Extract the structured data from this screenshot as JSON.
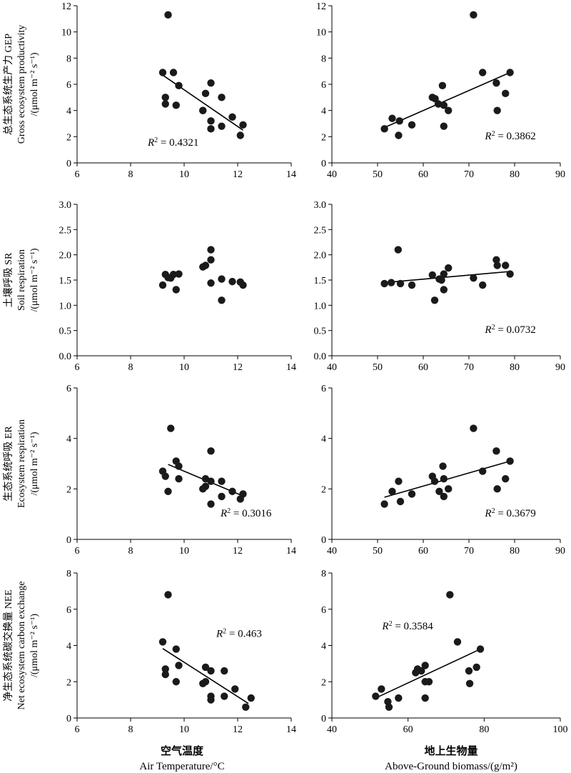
{
  "figure": {
    "row_labels": [
      {
        "cn": "总生态系统生产力 GEP",
        "en": "Gross ecosystem productivity",
        "unit": "/(μmol m⁻² s⁻¹)"
      },
      {
        "cn": "土壤呼吸 SR",
        "en": "Soil respiration",
        "unit": "/(μmol m⁻² s⁻¹)"
      },
      {
        "cn": "生态系统呼吸 ER",
        "en": "Ecosystem respiration",
        "unit": "/(μmol m⁻² s⁻¹)"
      },
      {
        "cn": "净生态系统碳交换量 NEE",
        "en": "Net ecosystem carbon exchange",
        "unit": "/(μmol m⁻² s⁻¹)"
      }
    ],
    "x_labels": [
      {
        "cn": "空气温度",
        "en": "Air Temperature/°C"
      },
      {
        "cn": "地上生物量",
        "en": "Above-Ground biomass/(g/m²)"
      }
    ]
  },
  "chart_data": [
    {
      "type": "scatter",
      "panel": "GEP vs air temperature",
      "xlim": [
        6,
        14
      ],
      "xticks": [
        6,
        8,
        10,
        12,
        14
      ],
      "ylim": [
        0,
        12
      ],
      "yticks": [
        0,
        2,
        4,
        6,
        8,
        10,
        12
      ],
      "x": [
        9.4,
        9.2,
        9.3,
        9.3,
        9.6,
        9.7,
        9.8,
        10.7,
        10.7,
        10.8,
        11.0,
        11.0,
        11.0,
        11.4,
        11.4,
        11.8,
        12.1,
        12.2
      ],
      "y": [
        11.3,
        6.9,
        5.0,
        4.5,
        6.9,
        4.4,
        5.9,
        4.0,
        4.0,
        5.3,
        6.1,
        3.2,
        2.6,
        5.0,
        2.8,
        3.5,
        2.1,
        2.9
      ],
      "fit": {
        "x1": 9.2,
        "y1": 6.7,
        "x2": 12.2,
        "y2": 2.5
      },
      "r2": "= 0.4321",
      "r2_pos": "bottom-center"
    },
    {
      "type": "scatter",
      "panel": "GEP vs above-ground biomass",
      "xlim": [
        40,
        90
      ],
      "xticks": [
        40,
        50,
        60,
        70,
        80,
        90
      ],
      "ylim": [
        0,
        12
      ],
      "yticks": [
        0,
        2,
        4,
        6,
        8,
        10,
        12
      ],
      "x": [
        51.5,
        53.2,
        54.6,
        54.8,
        57.5,
        62.0,
        62.6,
        63.3,
        64.2,
        64.5,
        64.5,
        65.5,
        71.0,
        73.0,
        76.0,
        76.2,
        78.0,
        79.0
      ],
      "y": [
        2.6,
        3.4,
        2.1,
        3.2,
        2.9,
        5.0,
        4.9,
        4.5,
        5.9,
        4.4,
        2.8,
        4.0,
        11.3,
        6.9,
        6.1,
        4.0,
        5.3,
        6.9
      ],
      "fit": {
        "x1": 51.5,
        "y1": 2.7,
        "x2": 79.0,
        "y2": 6.9
      },
      "r2": "= 0.3862",
      "r2_pos": "bottom-right"
    },
    {
      "type": "scatter",
      "panel": "SR vs air temperature",
      "xlim": [
        6,
        14
      ],
      "xticks": [
        6,
        8,
        10,
        12,
        14
      ],
      "ylim": [
        0,
        3.0
      ],
      "yticks": [
        0,
        0.5,
        1.0,
        1.5,
        2.0,
        2.5,
        3.0
      ],
      "x": [
        9.2,
        9.3,
        9.4,
        9.5,
        9.6,
        9.7,
        9.8,
        10.7,
        10.8,
        11.0,
        11.0,
        11.0,
        11.4,
        11.4,
        11.8,
        12.1,
        12.2
      ],
      "y": [
        1.4,
        1.61,
        1.55,
        1.54,
        1.61,
        1.31,
        1.62,
        1.76,
        1.79,
        2.1,
        1.9,
        1.44,
        1.52,
        1.1,
        1.47,
        1.46,
        1.4
      ],
      "r2": "",
      "r2_pos": "none"
    },
    {
      "type": "scatter",
      "panel": "SR vs above-ground biomass",
      "xlim": [
        40,
        90
      ],
      "xticks": [
        40,
        50,
        60,
        70,
        80,
        90
      ],
      "ylim": [
        0,
        3.0
      ],
      "yticks": [
        0,
        0.5,
        1.0,
        1.5,
        2.0,
        2.5,
        3.0
      ],
      "x": [
        51.5,
        53.0,
        54.5,
        55.0,
        57.5,
        62.0,
        62.5,
        63.5,
        64.0,
        64.5,
        64.5,
        65.5,
        71.0,
        73.0,
        76.0,
        76.2,
        78.0,
        79.0
      ],
      "y": [
        1.43,
        1.45,
        2.1,
        1.43,
        1.4,
        1.6,
        1.1,
        1.52,
        1.5,
        1.62,
        1.31,
        1.74,
        1.54,
        1.4,
        1.9,
        1.79,
        1.79,
        1.62
      ],
      "fit": {
        "x1": 51.5,
        "y1": 1.45,
        "x2": 79.0,
        "y2": 1.67
      },
      "r2": "= 0.0732",
      "r2_pos": "bottom-right"
    },
    {
      "type": "scatter",
      "panel": "ER vs air temperature",
      "xlim": [
        6,
        14
      ],
      "xticks": [
        6,
        8,
        10,
        12,
        14
      ],
      "ylim": [
        0,
        6
      ],
      "yticks": [
        0,
        2,
        4,
        6
      ],
      "x": [
        9.2,
        9.3,
        9.4,
        9.5,
        9.7,
        9.8,
        9.8,
        10.7,
        10.8,
        10.8,
        11.0,
        11.0,
        11.0,
        11.4,
        11.4,
        11.8,
        12.1,
        12.2
      ],
      "y": [
        2.7,
        2.5,
        1.9,
        4.4,
        3.1,
        2.4,
        2.9,
        2.0,
        2.4,
        2.1,
        3.5,
        2.3,
        1.4,
        2.3,
        1.7,
        1.9,
        1.6,
        1.8
      ],
      "fit": {
        "x1": 9.4,
        "y1": 2.97,
        "x2": 12.2,
        "y2": 1.72
      },
      "r2": "= 0.3016",
      "r2_pos": "bottom-right"
    },
    {
      "type": "scatter",
      "panel": "ER vs above-ground biomass",
      "xlim": [
        40,
        90
      ],
      "xticks": [
        40,
        50,
        60,
        70,
        80,
        90
      ],
      "ylim": [
        0,
        6
      ],
      "yticks": [
        0,
        2,
        4,
        6
      ],
      "x": [
        51.5,
        53.2,
        54.6,
        55.0,
        57.5,
        62.0,
        62.5,
        63.5,
        64.3,
        64.5,
        64.5,
        65.5,
        71.0,
        73.0,
        76.0,
        76.2,
        78.0,
        79.0
      ],
      "y": [
        1.4,
        1.9,
        2.3,
        1.5,
        1.8,
        2.5,
        2.3,
        1.9,
        2.9,
        2.4,
        1.7,
        2.0,
        4.4,
        2.7,
        3.5,
        2.0,
        2.4,
        3.1
      ],
      "fit": {
        "x1": 51.5,
        "y1": 1.67,
        "x2": 79.0,
        "y2": 3.1
      },
      "r2": "= 0.3679",
      "r2_pos": "bottom-right"
    },
    {
      "type": "scatter",
      "panel": "NEE vs air temperature",
      "xlim": [
        6,
        14
      ],
      "xticks": [
        6,
        8,
        10,
        12,
        14
      ],
      "ylim": [
        0,
        8
      ],
      "yticks": [
        0,
        2,
        4,
        6,
        8
      ],
      "x": [
        9.2,
        9.3,
        9.3,
        9.4,
        9.7,
        9.7,
        9.8,
        10.7,
        10.8,
        10.8,
        11.0,
        11.0,
        11.0,
        11.5,
        11.5,
        11.9,
        12.3,
        12.5
      ],
      "y": [
        4.2,
        2.7,
        2.4,
        6.8,
        3.8,
        2.0,
        2.9,
        1.9,
        2.8,
        2.0,
        2.6,
        1.2,
        1.0,
        2.6,
        1.2,
        1.6,
        0.6,
        1.1
      ],
      "fit": {
        "x1": 9.2,
        "y1": 3.83,
        "x2": 12.4,
        "y2": 0.8
      },
      "r2": "= 0.463",
      "r2_pos": "top-center"
    },
    {
      "type": "scatter",
      "panel": "NEE vs above-ground biomass",
      "xlim": [
        40,
        100
      ],
      "xticks": [
        40,
        60,
        80,
        100
      ],
      "ylim": [
        0,
        8
      ],
      "yticks": [
        0,
        2,
        4,
        6,
        8
      ],
      "x": [
        51.5,
        53.0,
        54.7,
        55.0,
        57.5,
        62.0,
        62.5,
        63.5,
        64.5,
        64.5,
        64.5,
        65.5,
        71.0,
        73.0,
        76.0,
        76.2,
        78.0,
        79.0
      ],
      "y": [
        1.2,
        1.6,
        0.9,
        0.6,
        1.1,
        2.5,
        2.7,
        2.6,
        2.9,
        2.0,
        1.1,
        2.0,
        6.8,
        4.2,
        2.6,
        1.9,
        2.8,
        3.8
      ],
      "fit": {
        "x1": 51.5,
        "y1": 1.1,
        "x2": 79.0,
        "y2": 3.8
      },
      "r2": "= 0.3584",
      "r2_pos": "top-left"
    }
  ]
}
